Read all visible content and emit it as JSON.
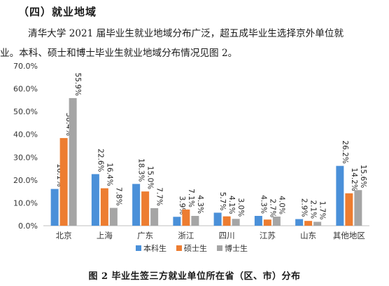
{
  "heading": "（四）就业地域",
  "paragraph": {
    "line1": "清华大学 2021 届毕业生就业地域分布广泛，超五成毕业生选择京外单位就",
    "line2": "业。本科、硕士和博士毕业生就业地域分布情况见图 2。"
  },
  "caption": "图 2 毕业生签三方就业单位所在省（区、市）分布",
  "chart_data": {
    "type": "bar",
    "title": "",
    "xlabel": "",
    "ylabel": "",
    "ylim": [
      0,
      70
    ],
    "y_ticks": [
      "0.0%",
      "10.0%",
      "20.0%",
      "30.0%",
      "40.0%",
      "50.0%",
      "60.0%",
      "70.0%"
    ],
    "categories": [
      "北京",
      "上海",
      "广东",
      "浙江",
      "四川",
      "江苏",
      "山东",
      "其他地区"
    ],
    "series": [
      {
        "name": "本科生",
        "color": "#4a90d9",
        "values": [
          16.1,
          22.6,
          18.3,
          3.9,
          5.7,
          4.3,
          2.9,
          26.2
        ],
        "labels": [
          "16.1%",
          "22.6%",
          "18.3%",
          "3.9%",
          "5.7%",
          "4.3%",
          "2.9%",
          "26.2%"
        ]
      },
      {
        "name": "硕士生",
        "color": "#ed7d31",
        "values": [
          38.4,
          16.4,
          15.0,
          7.1,
          4.1,
          2.7,
          2.1,
          14.2
        ],
        "labels": [
          "38.4%",
          "16.4%",
          "15.0%",
          "7.1%",
          "4.1%",
          "2.7%",
          "2.1%",
          "14.2%"
        ]
      },
      {
        "name": "博士生",
        "color": "#a5a5a5",
        "values": [
          55.9,
          7.8,
          7.7,
          4.3,
          3.0,
          4.0,
          1.7,
          15.6
        ],
        "labels": [
          "55.9%",
          "7.8%",
          "7.7%",
          "4.3%",
          "3.0%",
          "4.0%",
          "1.7%",
          "15.6%"
        ]
      }
    ],
    "grid": false,
    "legend_position": "bottom"
  }
}
